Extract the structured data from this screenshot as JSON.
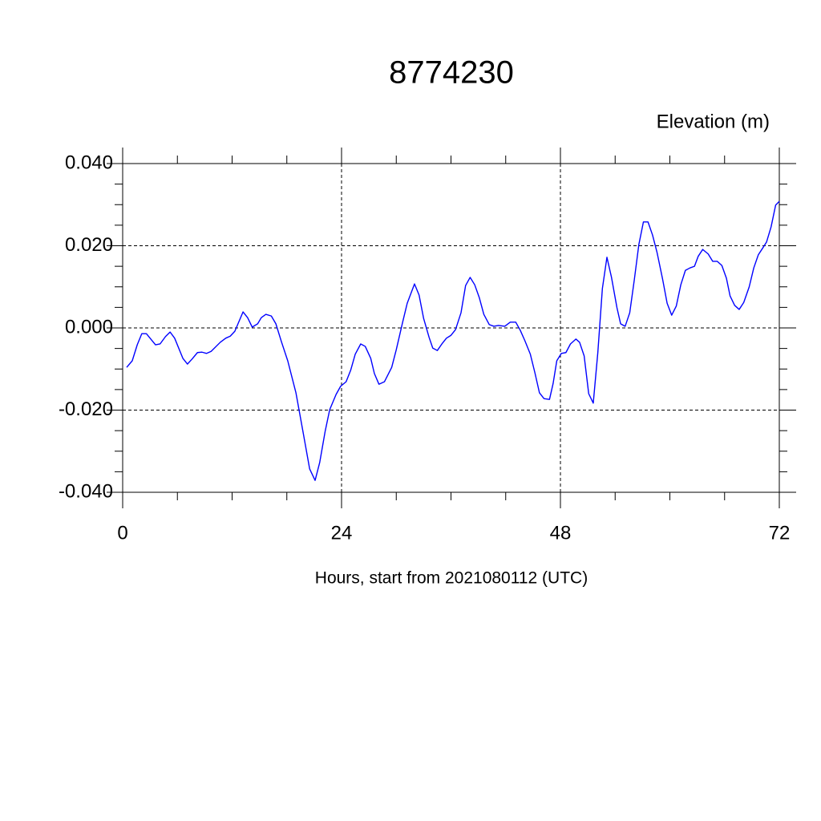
{
  "chart_data": {
    "type": "line",
    "title": "8774230",
    "subtitle": "Elevation (m)",
    "x_label": "Hours, start from 2021080112 (UTC)",
    "x": [
      0.44,
      1.05,
      1.6,
      2.1,
      2.6,
      3.6,
      4.1,
      4.7,
      5.2,
      5.7,
      6.6,
      7.1,
      7.6,
      8.2,
      8.7,
      9.2,
      9.7,
      10.7,
      11.3,
      11.8,
      12.3,
      13.2,
      13.7,
      14.2,
      14.8,
      15.2,
      15.7,
      16.3,
      16.8,
      17.4,
      18.1,
      19,
      19.8,
      20.5,
      21.1,
      21.6,
      22.2,
      22.7,
      23.4,
      23.9,
      24.5,
      25,
      25.5,
      26.1,
      26.6,
      27.2,
      27.6,
      28.1,
      28.7,
      29.5,
      30,
      30.7,
      31.2,
      32,
      32.5,
      33,
      33.6,
      34,
      34.5,
      35,
      35.5,
      36,
      36.5,
      37.1,
      37.6,
      38.1,
      38.6,
      39.1,
      39.6,
      40.2,
      40.7,
      41.2,
      41.9,
      42.5,
      43.1,
      43.6,
      44.1,
      44.7,
      45.2,
      45.7,
      46.2,
      46.8,
      47.2,
      47.6,
      48.1,
      48.6,
      49.1,
      49.7,
      50.1,
      50.6,
      51.1,
      51.6,
      52.1,
      52.6,
      53.1,
      53.6,
      54.2,
      54.6,
      55.1,
      55.6,
      56.1,
      56.6,
      57.1,
      57.6,
      58.1,
      58.6,
      59.2,
      59.7,
      60.2,
      60.7,
      61.2,
      61.7,
      62.2,
      62.7,
      63.1,
      63.6,
      64.2,
      64.7,
      65.2,
      65.7,
      66.2,
      66.6,
      67.1,
      67.6,
      68.1,
      68.7,
      69.2,
      69.7,
      70.2,
      70.6,
      71.1,
      71.6,
      72
    ],
    "series": [
      {
        "name": "Elevation",
        "color": "#0000ff",
        "values": [
          -0.0096,
          -0.008,
          -0.0041,
          -0.0014,
          -0.0014,
          -0.0041,
          -0.0039,
          -0.0021,
          -0.001,
          -0.0025,
          -0.0074,
          -0.0088,
          -0.0076,
          -0.006,
          -0.0059,
          -0.0062,
          -0.0057,
          -0.0035,
          -0.0025,
          -0.002,
          -0.0008,
          0.0039,
          0.0025,
          0.0002,
          0.001,
          0.0025,
          0.0033,
          0.0029,
          0.001,
          -0.0033,
          -0.008,
          -0.0158,
          -0.0256,
          -0.0343,
          -0.0371,
          -0.0328,
          -0.0252,
          -0.0199,
          -0.0162,
          -0.0142,
          -0.0131,
          -0.0103,
          -0.0064,
          -0.0039,
          -0.0045,
          -0.0074,
          -0.0111,
          -0.0137,
          -0.0131,
          -0.0096,
          -0.0053,
          0.0014,
          0.006,
          0.0107,
          0.008,
          0.0023,
          -0.0023,
          -0.0049,
          -0.0055,
          -0.0039,
          -0.0025,
          -0.0018,
          -0.0004,
          0.0037,
          0.0103,
          0.0123,
          0.0105,
          0.0074,
          0.0033,
          0.0008,
          0.0004,
          0.0006,
          0.0004,
          0.0014,
          0.0014,
          -0.0006,
          -0.0031,
          -0.0064,
          -0.0109,
          -0.0158,
          -0.0172,
          -0.0174,
          -0.0135,
          -0.008,
          -0.0062,
          -0.006,
          -0.0039,
          -0.0027,
          -0.0035,
          -0.0068,
          -0.016,
          -0.0183,
          -0.006,
          0.0096,
          0.0172,
          0.0123,
          0.0049,
          0.001,
          0.0004,
          0.0037,
          0.0117,
          0.0203,
          0.0258,
          0.0258,
          0.0226,
          0.0183,
          0.0119,
          0.006,
          0.0031,
          0.0053,
          0.0105,
          0.014,
          0.0146,
          0.015,
          0.0174,
          0.0191,
          0.018,
          0.0162,
          0.0162,
          0.0152,
          0.0121,
          0.0078,
          0.0055,
          0.0045,
          0.0062,
          0.01,
          0.0146,
          0.0178,
          0.0195,
          0.0209,
          0.0246,
          0.0299,
          0.0308
        ]
      }
    ],
    "xlim": [
      0,
      72
    ],
    "xticks": [
      0,
      24,
      48,
      72
    ],
    "ylim": [
      -0.04,
      0.04
    ],
    "yticks": [
      {
        "value": -0.04,
        "label": "-0.040"
      },
      {
        "value": -0.02,
        "label": "-0.020"
      },
      {
        "value": 0,
        "label": "0.000"
      },
      {
        "value": 0.02,
        "label": "0.020"
      },
      {
        "value": 0.04,
        "label": "0.040"
      }
    ],
    "grid": true
  }
}
